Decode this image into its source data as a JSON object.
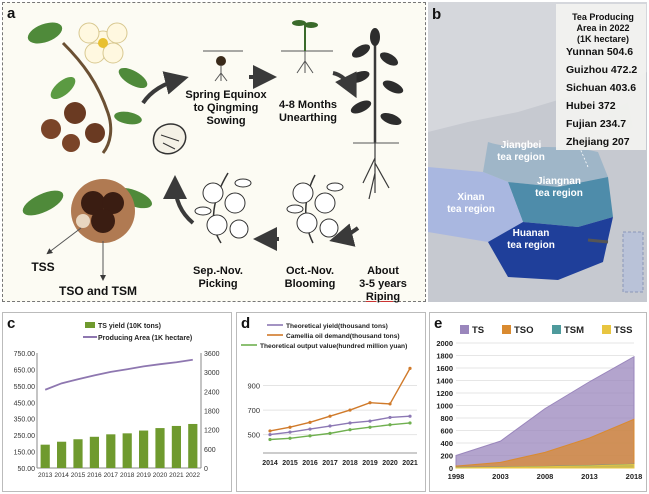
{
  "panel_a": {
    "label": "a",
    "stages": [
      "Spring Equinox to Qingming Sowing",
      "4-8 Months Unearthing",
      "About 3-5 years Riping",
      "Oct.-Nov. Blooming",
      "Sep.-Nov. Picking"
    ],
    "stage_lines": [
      [
        "Spring Equinox",
        "to Qingming",
        "Sowing"
      ],
      [
        "4-8 Months",
        "Unearthing"
      ],
      [
        "About",
        "3-5 years",
        "Riping"
      ],
      [
        "Oct.-Nov.",
        "Blooming"
      ],
      [
        "Sep.-Nov.",
        "Picking"
      ]
    ],
    "products": [
      "TSS",
      "TSO and TSM"
    ]
  },
  "panel_b": {
    "label": "b",
    "table_title": "Tea Producing Area in 2022 (1K hectare)",
    "table_title_lines": [
      "Tea Producing",
      "Area in 2022",
      "(1K hectare)"
    ],
    "rows": [
      {
        "province": "Yunnan",
        "value": "504.6"
      },
      {
        "province": "Guizhou",
        "value": "472.2"
      },
      {
        "province": "Sichuan",
        "value": "403.6"
      },
      {
        "province": "Hubei",
        "value": "372"
      },
      {
        "province": "Fujian",
        "value": "234.7"
      },
      {
        "province": "Zhejiang",
        "value": "207"
      }
    ],
    "regions": [
      "Jiangbei tea region",
      "Jiangnan tea region",
      "Xinan tea region",
      "Huanan tea region"
    ],
    "region_lines": [
      [
        "Jiangbei",
        "tea region"
      ],
      [
        "Jiangnan",
        "tea region"
      ],
      [
        "Xinan",
        "tea region"
      ],
      [
        "Huanan",
        "tea region"
      ]
    ],
    "colors": {
      "jiangbei": "#9fb6c8",
      "jiangnan": "#4e8caa",
      "xinan": "#a9b7e0",
      "huanan": "#1f3f9a"
    }
  },
  "panel_c": {
    "label": "c",
    "chart_data": {
      "type": "bar",
      "categories": [
        "2013",
        "2014",
        "2015",
        "2016",
        "2017",
        "2018",
        "2019",
        "2020",
        "2021",
        "2022"
      ],
      "series": [
        {
          "name": "TS yield (10K tons)",
          "type": "bar",
          "axis": "left",
          "color": "#6f9a2e",
          "values": [
            192,
            210,
            225,
            240,
            255,
            261,
            278,
            293,
            306,
            318
          ]
        },
        {
          "name": "Producing Area (1K hectare)",
          "type": "line",
          "axis": "right",
          "color": "#8e77b0",
          "values": [
            2450,
            2650,
            2780,
            2900,
            3010,
            3090,
            3180,
            3250,
            3310,
            3390
          ]
        }
      ],
      "left_ticks": [
        "50.00",
        "150.00",
        "250.00",
        "350.00",
        "450.00",
        "550.00",
        "650.00",
        "750.00"
      ],
      "right_ticks": [
        "0",
        "600",
        "1200",
        "1800",
        "2400",
        "3000",
        "3600"
      ],
      "ylim_left": [
        50,
        750
      ],
      "ylim_right": [
        0,
        3600
      ]
    }
  },
  "panel_d": {
    "label": "d",
    "chart_data": {
      "type": "line",
      "categories": [
        "2014",
        "2015",
        "2016",
        "2017",
        "2018",
        "2019",
        "2020",
        "2021"
      ],
      "series": [
        {
          "name": "Theoretical yield(thousand tons)",
          "color": "#8c78b4",
          "values": [
            500,
            520,
            545,
            570,
            595,
            610,
            640,
            650
          ]
        },
        {
          "name": "Camellia oil demand(thousand tons)",
          "color": "#d07a2a",
          "values": [
            530,
            560,
            600,
            650,
            700,
            760,
            750,
            1040
          ]
        },
        {
          "name": "Theoretical output value(hundred million yuan)",
          "color": "#70b050",
          "values": [
            460,
            470,
            490,
            510,
            540,
            560,
            580,
            595
          ]
        }
      ],
      "yticks": [
        "500",
        "700",
        "900"
      ],
      "ylim": [
        350,
        1100
      ]
    }
  },
  "panel_e": {
    "label": "e",
    "chart_data": {
      "type": "area",
      "x": [
        "1998",
        "2003",
        "2008",
        "2013",
        "2018"
      ],
      "series": [
        {
          "name": "TS",
          "color": "#9a86bc",
          "values": [
            200,
            430,
            950,
            1380,
            1780
          ]
        },
        {
          "name": "TSO",
          "color": "#d98a30",
          "values": [
            30,
            90,
            250,
            480,
            780
          ]
        },
        {
          "name": "TSM",
          "color": "#4e9a9c",
          "values": [
            10,
            15,
            25,
            40,
            60
          ]
        },
        {
          "name": "TSS",
          "color": "#e8c540",
          "values": [
            5,
            10,
            20,
            35,
            55
          ]
        }
      ],
      "yticks": [
        "0",
        "200",
        "400",
        "600",
        "800",
        "1000",
        "1200",
        "1400",
        "1600",
        "1800",
        "2000"
      ],
      "ylim": [
        0,
        2000
      ]
    }
  }
}
